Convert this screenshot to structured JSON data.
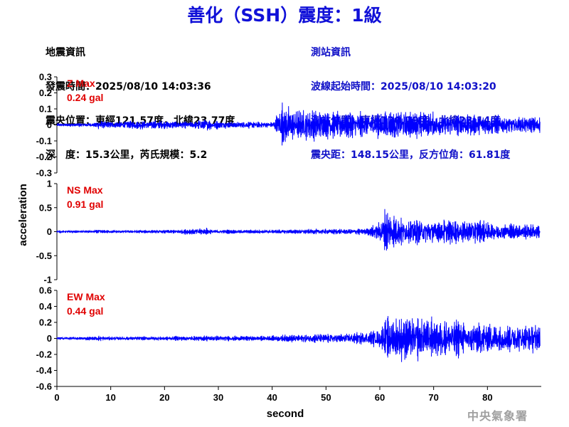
{
  "header": {
    "title": "善化（SSH）震度：1級"
  },
  "earthquake_info": {
    "heading": "地震資訊",
    "origin_time": "發震時間：2025/08/10 14:03:36",
    "epicenter": "震央位置：東經121.57度，北緯23.77度",
    "depth_magnitude": "深　度：15.3公里，芮氏規模：5.2"
  },
  "station_info": {
    "heading": "測站資訊",
    "wave_start": "波線起始時間：2025/08/10 14:03:20",
    "location": "測站位置：東經120.29度，北緯23.14度",
    "distance": "震央距：148.15公里，反方位角：61.81度"
  },
  "footer": {
    "agency": "中央氣象署"
  },
  "chart_data": {
    "type": "line",
    "xlabel": "second",
    "ylabel": "acceleration",
    "xlim": [
      0,
      90
    ],
    "xticks": [
      "0",
      "10",
      "20",
      "30",
      "40",
      "50",
      "60",
      "70",
      "80"
    ],
    "line_color": "#0000ff",
    "label_color": "#e00000",
    "panels": [
      {
        "name": "Z",
        "max_label": "Z Max",
        "max_value": "0.24 gal",
        "ylim": [
          -0.3,
          0.3
        ],
        "yticks": [
          "0.3",
          "0.2",
          "0.1",
          "0",
          "-0.1",
          "-0.2",
          "-0.3"
        ],
        "envelope": [
          [
            0,
            0.012
          ],
          [
            7,
            0.015
          ],
          [
            8,
            0.04
          ],
          [
            9,
            0.025
          ],
          [
            12,
            0.03
          ],
          [
            17,
            0.035
          ],
          [
            20,
            0.028
          ],
          [
            25,
            0.025
          ],
          [
            28,
            0.045
          ],
          [
            29,
            0.03
          ],
          [
            35,
            0.025
          ],
          [
            40,
            0.022
          ],
          [
            41,
            0.09
          ],
          [
            42,
            0.16
          ],
          [
            44,
            0.13
          ],
          [
            46,
            0.12
          ],
          [
            50,
            0.1
          ],
          [
            55,
            0.095
          ],
          [
            60,
            0.09
          ],
          [
            63,
            0.11
          ],
          [
            66,
            0.1
          ],
          [
            70,
            0.09
          ],
          [
            75,
            0.085
          ],
          [
            80,
            0.07
          ],
          [
            85,
            0.06
          ],
          [
            89.5,
            0.06
          ]
        ]
      },
      {
        "name": "NS",
        "max_label": "NS Max",
        "max_value": "0.91 gal",
        "ylim": [
          -1,
          1
        ],
        "yticks": [
          "1",
          "0.5",
          "0",
          "-0.5",
          "-1"
        ],
        "envelope": [
          [
            0,
            0.025
          ],
          [
            7,
            0.03
          ],
          [
            8,
            0.06
          ],
          [
            9,
            0.035
          ],
          [
            20,
            0.04
          ],
          [
            28,
            0.09
          ],
          [
            29,
            0.045
          ],
          [
            40,
            0.05
          ],
          [
            45,
            0.06
          ],
          [
            55,
            0.07
          ],
          [
            58,
            0.09
          ],
          [
            60,
            0.25
          ],
          [
            61,
            0.55
          ],
          [
            62,
            0.45
          ],
          [
            63,
            0.35
          ],
          [
            66,
            0.3
          ],
          [
            70,
            0.3
          ],
          [
            75,
            0.28
          ],
          [
            80,
            0.25
          ],
          [
            85,
            0.2
          ],
          [
            89.5,
            0.18
          ]
        ]
      },
      {
        "name": "EW",
        "max_label": "EW Max",
        "max_value": "0.44 gal",
        "ylim": [
          -0.6,
          0.6
        ],
        "yticks": [
          "0.6",
          "0.4",
          "0.2",
          "0",
          "-0.2",
          "-0.4",
          "-0.6"
        ],
        "envelope": [
          [
            0,
            0.02
          ],
          [
            7,
            0.025
          ],
          [
            8,
            0.045
          ],
          [
            9,
            0.025
          ],
          [
            20,
            0.03
          ],
          [
            28,
            0.04
          ],
          [
            35,
            0.035
          ],
          [
            40,
            0.04
          ],
          [
            42,
            0.05
          ],
          [
            45,
            0.06
          ],
          [
            50,
            0.07
          ],
          [
            55,
            0.08
          ],
          [
            58,
            0.09
          ],
          [
            60,
            0.15
          ],
          [
            61,
            0.25
          ],
          [
            62,
            0.3
          ],
          [
            65,
            0.3
          ],
          [
            70,
            0.28
          ],
          [
            75,
            0.25
          ],
          [
            80,
            0.22
          ],
          [
            85,
            0.2
          ],
          [
            89.5,
            0.2
          ]
        ]
      }
    ]
  }
}
